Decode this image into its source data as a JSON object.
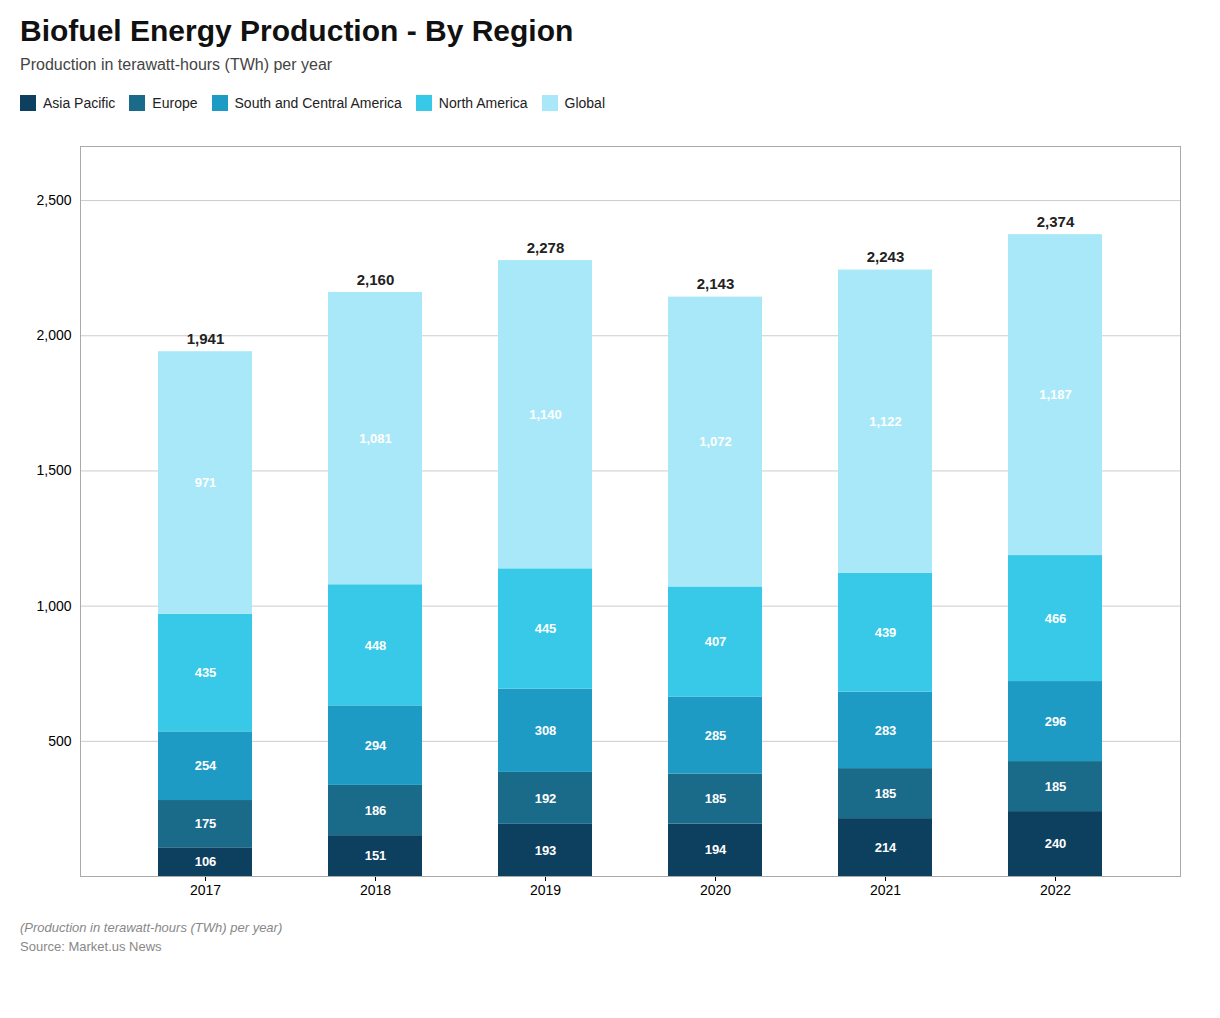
{
  "chart_data": {
    "type": "bar",
    "stacked": true,
    "title": "Biofuel Energy Production - By Region",
    "subtitle": "Production in terawatt-hours (TWh) per year",
    "annotations": [
      "(Production in terawatt-hours (TWh) per year)",
      "Source: Market.us News"
    ],
    "categories": [
      "2017",
      "2018",
      "2019",
      "2020",
      "2021",
      "2022"
    ],
    "series": [
      {
        "name": "Asia Pacific",
        "color": "#0d3f5f",
        "values": [
          106,
          151,
          193,
          194,
          214,
          240
        ]
      },
      {
        "name": "Europe",
        "color": "#1a6a8a",
        "values": [
          175,
          186,
          192,
          185,
          185,
          185
        ]
      },
      {
        "name": "South and Central America",
        "color": "#1e9bc4",
        "values": [
          254,
          294,
          308,
          285,
          283,
          296
        ]
      },
      {
        "name": "North America",
        "color": "#38c8e8",
        "values": [
          435,
          448,
          445,
          407,
          439,
          466
        ]
      },
      {
        "name": "Global",
        "color": "#a8e8f8",
        "values": [
          971,
          1081,
          1140,
          1072,
          1122,
          1187
        ],
        "value_labels": [
          "971",
          "1,081",
          "1,140",
          "1,072",
          "1,122",
          "1,187"
        ]
      }
    ],
    "totals": [
      1941,
      2160,
      2278,
      2143,
      2243,
      2374
    ],
    "total_labels": [
      "1,941",
      "2,160",
      "2,278",
      "2,143",
      "2,243",
      "2,374"
    ],
    "ylim": [
      0,
      2700
    ],
    "yticks": [
      500,
      {
        "value": 1000,
        "label": "1,000"
      },
      {
        "value": 1500,
        "label": "1,500"
      },
      {
        "value": 2000,
        "label": "2,000"
      },
      {
        "value": 2500,
        "label": "2,500"
      }
    ],
    "grid": true,
    "data_labels": true,
    "legend": "top"
  }
}
